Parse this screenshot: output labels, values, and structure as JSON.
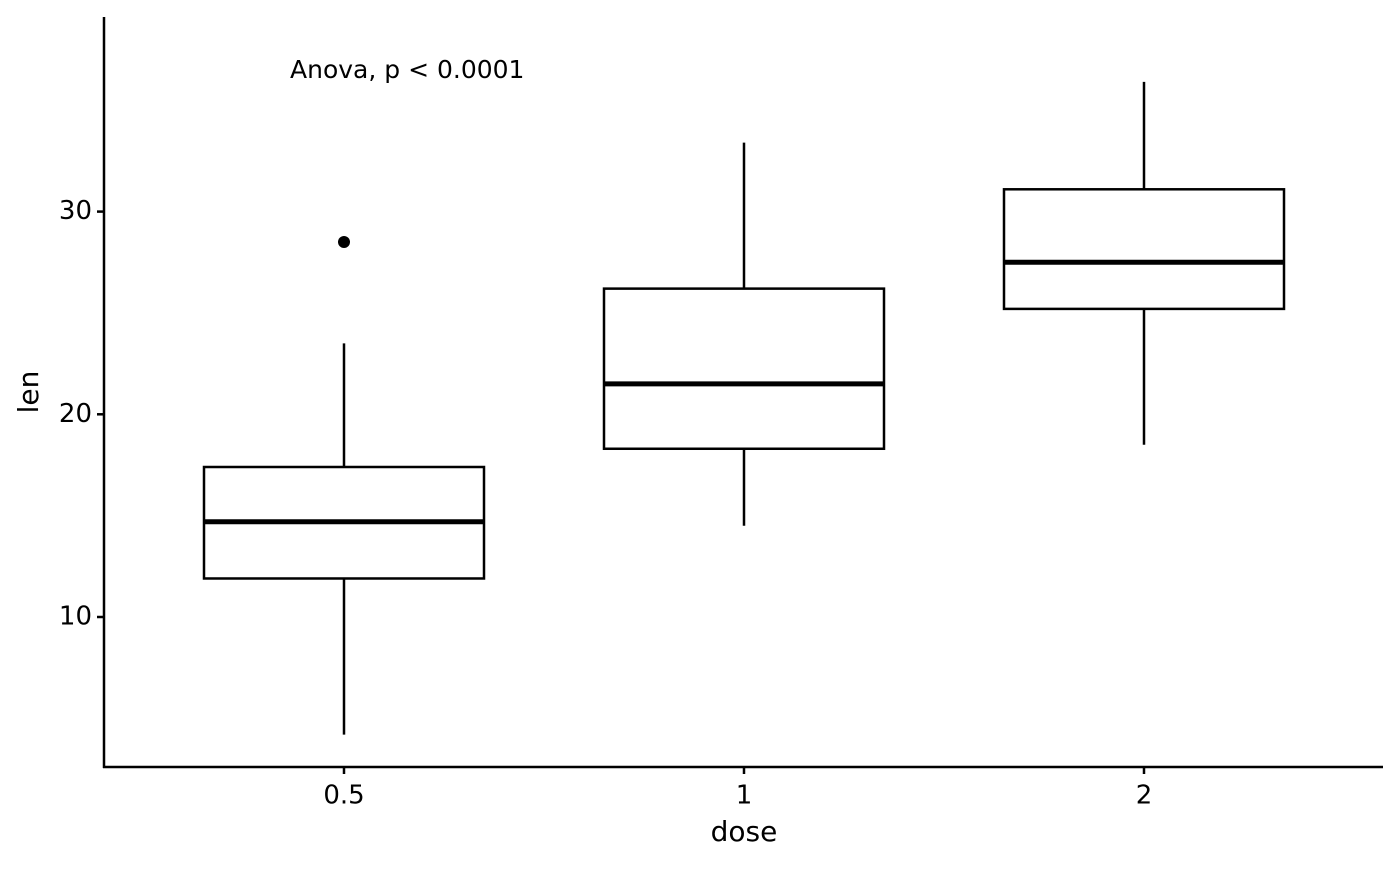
{
  "chart_data": {
    "type": "box",
    "annotation": "Anova, p < 0.0001",
    "x_label": "dose",
    "y_label": "len",
    "categories": [
      "0.5",
      "1",
      "2"
    ],
    "min": [
      4.2,
      14.5,
      18.5
    ],
    "q1": [
      11.9,
      18.3,
      25.2
    ],
    "median": [
      14.7,
      21.5,
      27.5
    ],
    "q3": [
      17.4,
      26.2,
      31.1
    ],
    "max": [
      23.5,
      33.4,
      36.4
    ],
    "outliers": [
      [
        28.5
      ],
      [],
      []
    ],
    "color": "#000000",
    "ylim": [
      2.6,
      39.6
    ],
    "yticks": [
      10,
      20,
      30
    ],
    "grid": false
  }
}
